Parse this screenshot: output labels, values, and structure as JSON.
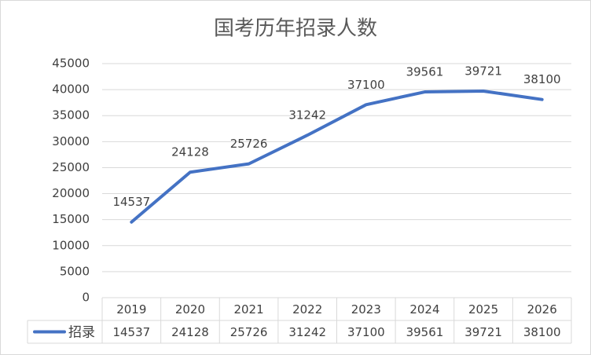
{
  "chart_data": {
    "type": "line",
    "title": "国考历年招录人数",
    "categories": [
      "2019",
      "2020",
      "2021",
      "2022",
      "2023",
      "2024",
      "2025",
      "2026"
    ],
    "series": [
      {
        "name": "招录",
        "color": "#4472c4",
        "values": [
          14537,
          24128,
          25726,
          31242,
          37100,
          39561,
          39721,
          38100
        ]
      }
    ],
    "ylim": [
      0,
      45000
    ],
    "yticks": [
      0,
      5000,
      10000,
      15000,
      20000,
      25000,
      30000,
      35000,
      40000,
      45000
    ],
    "grid": true,
    "data_labels": true,
    "data_table": true
  }
}
